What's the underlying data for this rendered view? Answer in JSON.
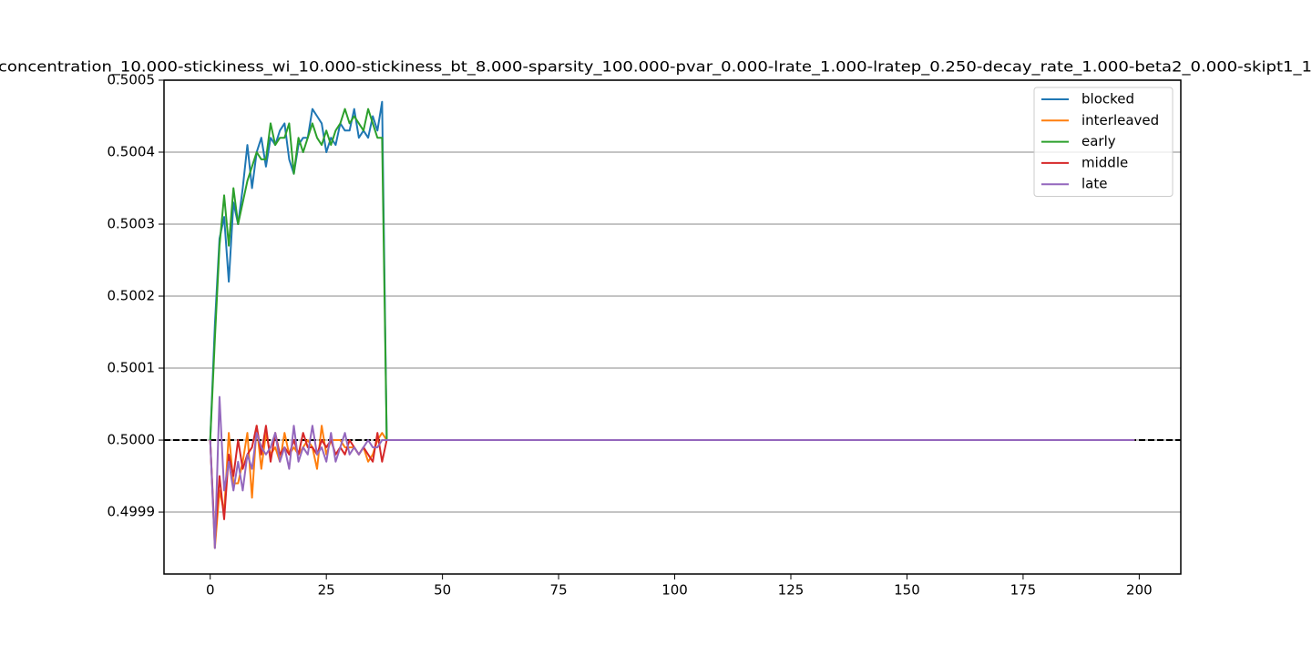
{
  "chart_data": {
    "type": "line",
    "title": "concentration_10.000-stickiness_wi_10.000-stickiness_bt_8.000-sparsity_100.000-pvar_0.000-lrate_1.000-lratep_0.250-decay_rate_1.000-beta2_0.000-skipt1_1",
    "x": [
      0,
      1,
      2,
      3,
      4,
      5,
      6,
      7,
      8,
      9,
      10,
      11,
      12,
      13,
      14,
      15,
      16,
      17,
      18,
      19,
      20,
      21,
      22,
      23,
      24,
      25,
      26,
      27,
      28,
      29,
      30,
      31,
      32,
      33,
      34,
      35,
      36,
      37,
      38,
      199
    ],
    "series": [
      {
        "name": "blocked",
        "color": "#1f77b4",
        "values": [
          0.5,
          0.50016,
          0.50028,
          0.50031,
          0.50022,
          0.50033,
          0.5003,
          0.50035,
          0.50041,
          0.50035,
          0.5004,
          0.50042,
          0.50038,
          0.50042,
          0.50041,
          0.50043,
          0.50044,
          0.50039,
          0.50037,
          0.50041,
          0.50042,
          0.50042,
          0.50046,
          0.50045,
          0.50044,
          0.5004,
          0.50042,
          0.50041,
          0.50044,
          0.50043,
          0.50043,
          0.50046,
          0.50042,
          0.50043,
          0.50042,
          0.50045,
          0.50043,
          0.50047,
          0.5,
          0.5
        ]
      },
      {
        "name": "interleaved",
        "color": "#ff7f0e",
        "values": [
          0.5,
          0.49985,
          0.49993,
          0.4999,
          0.50001,
          0.49994,
          0.49994,
          0.49997,
          0.50001,
          0.49992,
          0.50002,
          0.49996,
          0.50001,
          0.49998,
          0.49999,
          0.49997,
          0.50001,
          0.49998,
          0.49999,
          0.49998,
          0.49999,
          0.5,
          0.49999,
          0.49996,
          0.50002,
          0.49998,
          0.5,
          0.5,
          0.5,
          0.49999,
          0.49999,
          0.49999,
          0.49998,
          0.49999,
          0.49997,
          0.49998,
          0.5,
          0.50001,
          0.5,
          0.5
        ]
      },
      {
        "name": "early",
        "color": "#2ca02c",
        "values": [
          0.5,
          0.50014,
          0.50027,
          0.50034,
          0.50027,
          0.50035,
          0.5003,
          0.50033,
          0.50036,
          0.50038,
          0.5004,
          0.50039,
          0.50039,
          0.50044,
          0.50041,
          0.50042,
          0.50042,
          0.50044,
          0.50037,
          0.50042,
          0.5004,
          0.50042,
          0.50044,
          0.50042,
          0.50041,
          0.50043,
          0.50041,
          0.50043,
          0.50044,
          0.50046,
          0.50044,
          0.50045,
          0.50044,
          0.50043,
          0.50046,
          0.50044,
          0.50042,
          0.50042,
          0.5,
          0.5
        ]
      },
      {
        "name": "middle",
        "color": "#d62728",
        "values": [
          0.5,
          0.49986,
          0.49995,
          0.49989,
          0.49998,
          0.49995,
          0.5,
          0.49996,
          0.49998,
          0.49999,
          0.50002,
          0.49998,
          0.50002,
          0.49997,
          0.50001,
          0.49998,
          0.49999,
          0.49998,
          0.5,
          0.49998,
          0.50001,
          0.49999,
          0.49999,
          0.49998,
          0.5,
          0.49999,
          0.5,
          0.49998,
          0.49999,
          0.49998,
          0.5,
          0.49999,
          0.49998,
          0.49999,
          0.49998,
          0.49997,
          0.50001,
          0.49997,
          0.5,
          0.5
        ]
      },
      {
        "name": "late",
        "color": "#9467bd",
        "values": [
          0.5,
          0.49985,
          0.50006,
          0.49993,
          0.49997,
          0.49993,
          0.49997,
          0.49993,
          0.49998,
          0.49996,
          0.50001,
          0.49999,
          0.49998,
          0.49999,
          0.50001,
          0.49997,
          0.49999,
          0.49996,
          0.50002,
          0.49997,
          0.49999,
          0.49998,
          0.50002,
          0.49998,
          0.49999,
          0.49997,
          0.50001,
          0.49997,
          0.49999,
          0.50001,
          0.49998,
          0.49999,
          0.49998,
          0.49999,
          0.5,
          0.49999,
          0.49999,
          0.5,
          0.5,
          0.5
        ]
      }
    ],
    "xlim": [
      -9.95,
      208.95
    ],
    "xticks": [
      0,
      25,
      50,
      75,
      100,
      125,
      150,
      175,
      200
    ],
    "ylim": [
      0.499814,
      0.5005
    ],
    "yticks": [
      {
        "value": 0.4999,
        "label": "0.4999"
      },
      {
        "value": 0.5,
        "label": "0.5000"
      },
      {
        "value": 0.5001,
        "label": "0.5001"
      },
      {
        "value": 0.5002,
        "label": "0.5002"
      },
      {
        "value": 0.5003,
        "label": "0.5003"
      },
      {
        "value": 0.5004,
        "label": "0.5004"
      },
      {
        "value": 0.5005,
        "label": "0.5005"
      }
    ],
    "hline": 0.5,
    "grid": true,
    "legend": "upper right"
  }
}
